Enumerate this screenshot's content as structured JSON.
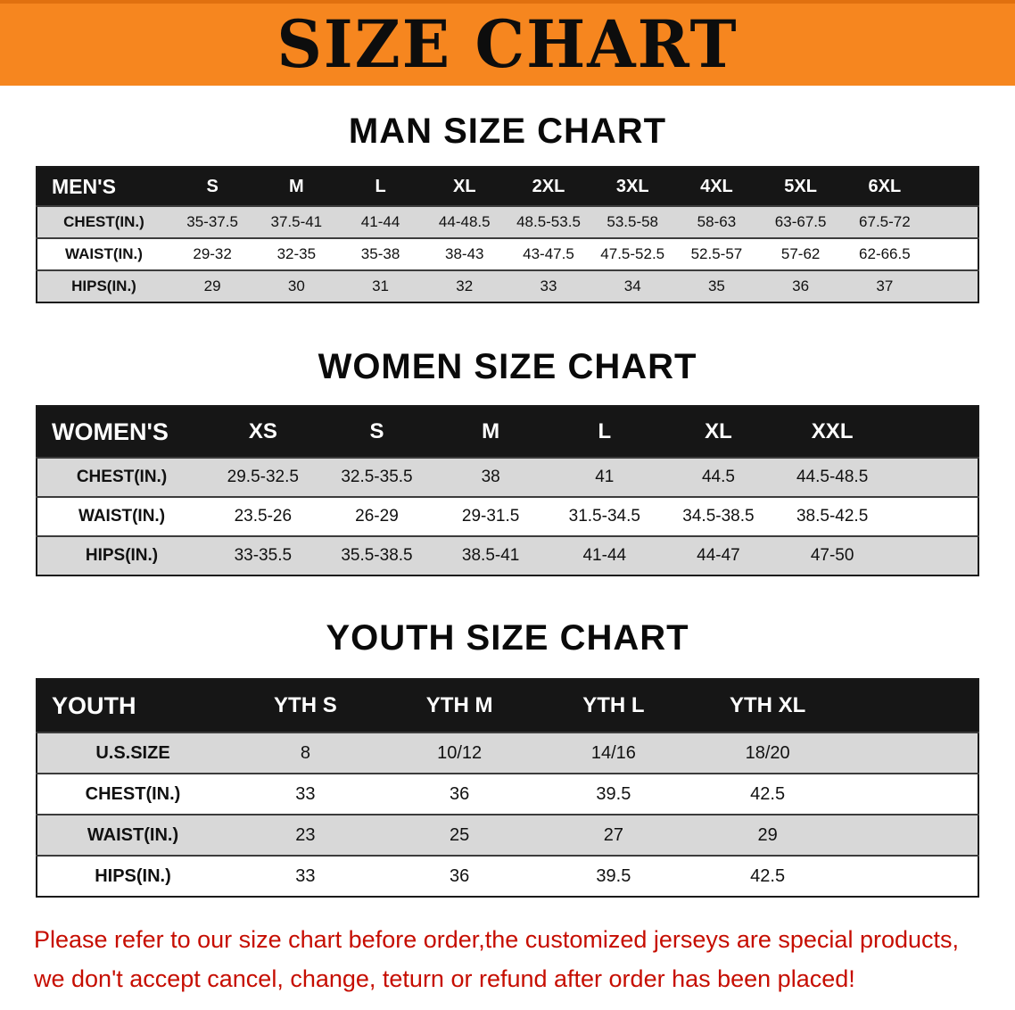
{
  "banner": {
    "title": "SIZE CHART"
  },
  "colors": {
    "banner_bg": "#f6861f",
    "header_bar": "#161616",
    "row_gray": "#d8d8d8",
    "row_white": "#ffffff",
    "notice_red": "#c60d00"
  },
  "men": {
    "heading": "MAN SIZE CHART",
    "table": {
      "header": [
        "MEN'S",
        "S",
        "M",
        "L",
        "XL",
        "2XL",
        "3XL",
        "4XL",
        "5XL",
        "6XL"
      ],
      "rows": [
        [
          "CHEST(IN.)",
          "35-37.5",
          "37.5-41",
          "41-44",
          "44-48.5",
          "48.5-53.5",
          "53.5-58",
          "58-63",
          "63-67.5",
          "67.5-72"
        ],
        [
          "WAIST(IN.)",
          "29-32",
          "32-35",
          "35-38",
          "38-43",
          "43-47.5",
          "47.5-52.5",
          "52.5-57",
          "57-62",
          "62-66.5"
        ],
        [
          "HIPS(IN.)",
          "29",
          "30",
          "31",
          "32",
          "33",
          "34",
          "35",
          "36",
          "37"
        ]
      ]
    }
  },
  "women": {
    "heading": "WOMEN SIZE CHART",
    "table": {
      "header": [
        "WOMEN'S",
        "XS",
        "S",
        "M",
        "L",
        "XL",
        "XXL"
      ],
      "rows": [
        [
          "CHEST(IN.)",
          "29.5-32.5",
          "32.5-35.5",
          "38",
          "41",
          "44.5",
          "44.5-48.5"
        ],
        [
          "WAIST(IN.)",
          "23.5-26",
          "26-29",
          "29-31.5",
          "31.5-34.5",
          "34.5-38.5",
          "38.5-42.5"
        ],
        [
          "HIPS(IN.)",
          "33-35.5",
          "35.5-38.5",
          "38.5-41",
          "41-44",
          "44-47",
          "47-50"
        ]
      ]
    }
  },
  "youth": {
    "heading": "YOUTH SIZE CHART",
    "table": {
      "header": [
        "YOUTH",
        "YTH S",
        "YTH M",
        "YTH L",
        "YTH XL"
      ],
      "rows": [
        [
          "U.S.SIZE",
          "8",
          "10/12",
          "14/16",
          "18/20"
        ],
        [
          "CHEST(IN.)",
          "33",
          "36",
          "39.5",
          "42.5"
        ],
        [
          "WAIST(IN.)",
          "23",
          "25",
          "27",
          "29"
        ],
        [
          "HIPS(IN.)",
          "33",
          "36",
          "39.5",
          "42.5"
        ]
      ]
    }
  },
  "footer": {
    "lines": [
      "Please refer to our size chart before order,the customized jerseys are special products,",
      "we don't accept cancel, change, teturn or refund after order has been placed!"
    ]
  }
}
